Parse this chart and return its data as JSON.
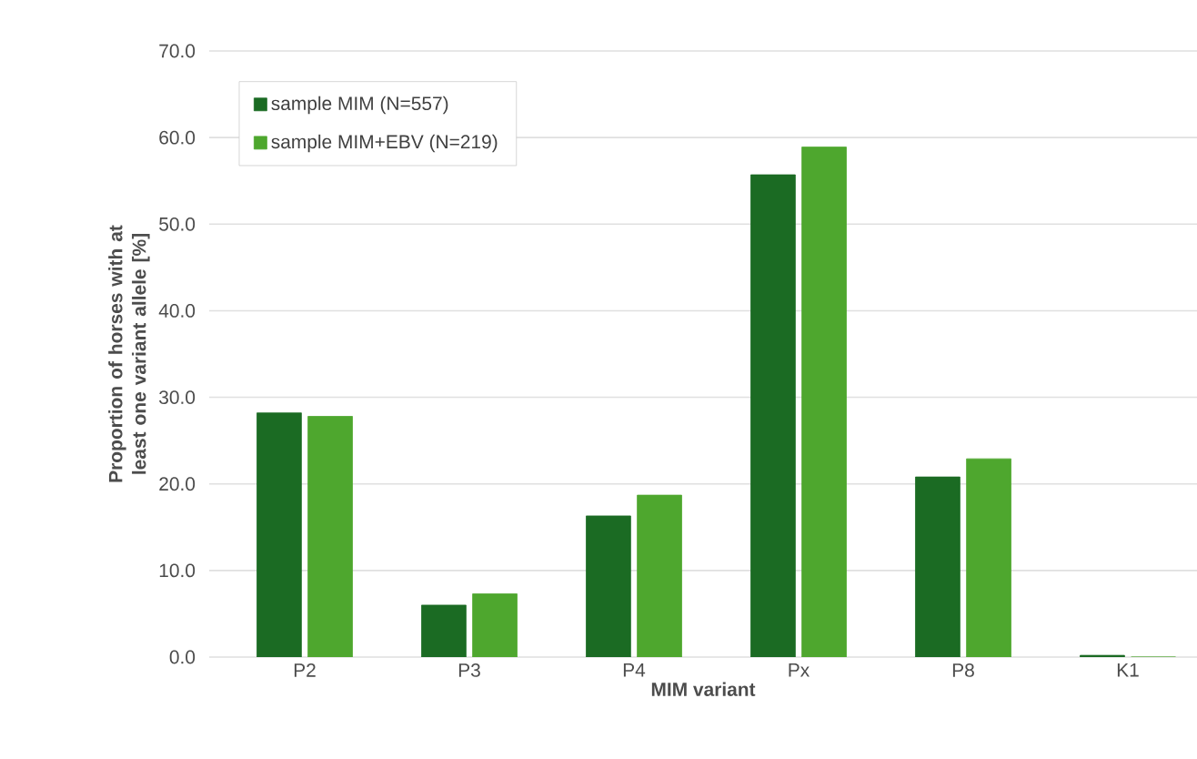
{
  "chart_data": {
    "type": "bar",
    "xlabel": "MIM variant",
    "ylabel": "Proportion of horses with at least one variant allele [%]",
    "categories": [
      "P2",
      "P3",
      "P4",
      "Px",
      "P8",
      "K1"
    ],
    "series": [
      {
        "name": "sample MIM (N=557)",
        "color": "#1b6b23",
        "values": [
          28.2,
          6.0,
          16.3,
          55.7,
          20.8,
          0.2
        ]
      },
      {
        "name": "sample MIM+EBV (N=219)",
        "color": "#4ea72e",
        "values": [
          27.8,
          7.3,
          18.7,
          58.9,
          22.9,
          0.0
        ]
      }
    ],
    "ylim": [
      0,
      70
    ],
    "yticks": [
      {
        "value": 0,
        "label": "0.0"
      },
      {
        "value": 10,
        "label": "10.0"
      },
      {
        "value": 20,
        "label": "20.0"
      },
      {
        "value": 30,
        "label": "30.0"
      },
      {
        "value": 40,
        "label": "40.0"
      },
      {
        "value": 50,
        "label": "50.0"
      },
      {
        "value": 60,
        "label": "60.0"
      },
      {
        "value": 70,
        "label": "70.0"
      }
    ],
    "grid": "y",
    "legend": "top left"
  }
}
